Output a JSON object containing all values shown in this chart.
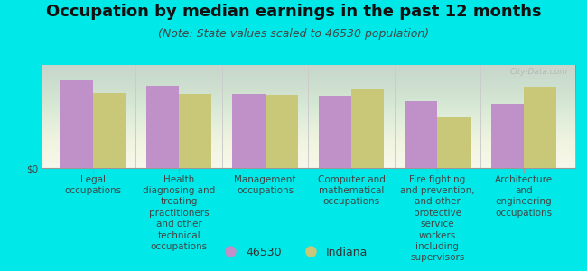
{
  "title": "Occupation by median earnings in the past 12 months",
  "subtitle": "(Note: State values scaled to 46530 population)",
  "background_outer": "#00e8e8",
  "background_plot_top": "#f5f5ee",
  "background_plot_bottom": "#d8ecc8",
  "categories": [
    "Legal\noccupations",
    "Health\ndiagnosing and\ntreating\npractitioners\nand other\ntechnical\noccupations",
    "Management\noccupations",
    "Computer and\nmathematical\noccupations",
    "Fire fighting\nand prevention,\nand other\nprotective\nservice\nworkers\nincluding\nsupervisors",
    "Architecture\nand\nengineering\noccupations"
  ],
  "values_46530": [
    85,
    80,
    72,
    70,
    65,
    62
  ],
  "values_indiana": [
    73,
    72,
    71,
    77,
    50,
    79
  ],
  "color_46530": "#c090c8",
  "color_indiana": "#c8c878",
  "bar_width": 0.38,
  "ylabel": "$0",
  "legend_label_46530": "46530",
  "legend_label_indiana": "Indiana",
  "title_fontsize": 13,
  "subtitle_fontsize": 9,
  "tick_fontsize": 7.5,
  "legend_fontsize": 9,
  "watermark": "City-Data.com"
}
